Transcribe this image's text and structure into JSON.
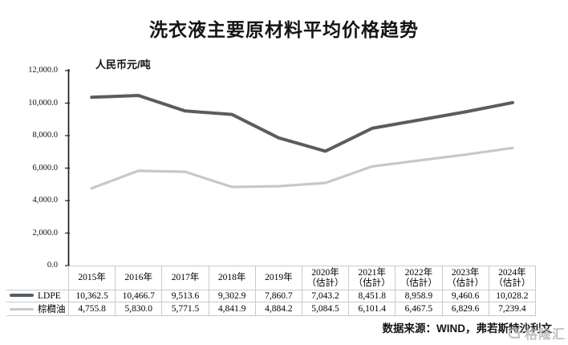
{
  "title": "洗衣液主要原材料平均价格趋势",
  "source_note": "数据来源：WIND，弗若斯特沙利文",
  "watermark": {
    "text": "格隆汇",
    "icon": "gelonghui-logo"
  },
  "colors": {
    "ldpe_line": "#595d61",
    "palm_line": "#c3c9cd",
    "axis": "#1f1f1f",
    "table_border": "#c6cbd0"
  },
  "chart_data": {
    "type": "line",
    "title": "洗衣液主要原材料平均价格趋势",
    "xlabel": "",
    "ylabel": "人民币元/吨",
    "ylim": [
      0,
      12000
    ],
    "ytick_step": 2000,
    "ytick_labels": [
      "0.0",
      "2,000.0",
      "4,000.0",
      "6,000.0",
      "8,000.0",
      "10,000.0",
      "12,000.0"
    ],
    "grid": false,
    "legend_position": "table-left-column",
    "categories": [
      "2015年",
      "2016年",
      "2017年",
      "2018年",
      "2019年",
      "2020年\n（估計）",
      "2021年\n（估計）",
      "2022年\n（估計）",
      "2023年\n（估計）",
      "2024年\n（估計）"
    ],
    "series": [
      {
        "name": "LDPE",
        "values": [
          10362.5,
          10466.7,
          9513.6,
          9302.9,
          7860.7,
          7043.2,
          8451.8,
          8958.9,
          9460.6,
          10028.2
        ]
      },
      {
        "name": "棕櫚油",
        "values": [
          4755.8,
          5830.0,
          5771.5,
          4841.9,
          4884.2,
          5084.5,
          6101.4,
          6467.5,
          6829.6,
          7239.4
        ]
      }
    ]
  }
}
